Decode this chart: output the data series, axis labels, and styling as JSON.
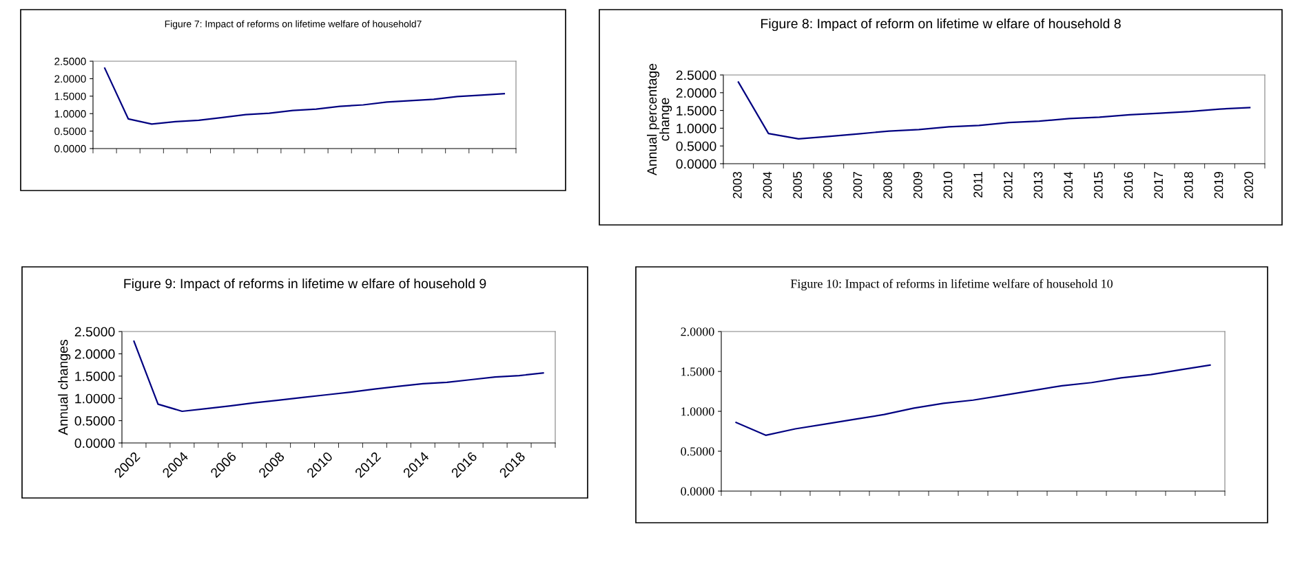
{
  "chart_data": [
    {
      "type": "line",
      "title": "Figure 7: Impact of reforms on lifetime welfare of household7",
      "categories": [
        null,
        null,
        null,
        null,
        null,
        null,
        null,
        null,
        null,
        null,
        null,
        null,
        null,
        null,
        null,
        null,
        null,
        null
      ],
      "series": [
        {
          "color": "#000080",
          "values": [
            2.3,
            0.85,
            0.7,
            0.77,
            0.81,
            0.89,
            0.97,
            1.01,
            1.09,
            1.13,
            1.21,
            1.25,
            1.33,
            1.37,
            1.41,
            1.49,
            1.53,
            1.57
          ]
        }
      ],
      "ylim": [
        0,
        2.5
      ],
      "yticks": [
        {
          "value": 0,
          "label": "0.0000"
        },
        {
          "value": 0.5,
          "label": "0.5000"
        },
        {
          "value": 1,
          "label": "1.0000"
        },
        {
          "value": 1.5,
          "label": "1.5000"
        },
        {
          "value": 2,
          "label": "2.0000"
        },
        {
          "value": 2.5,
          "label": "2.5000"
        }
      ],
      "grid": false,
      "legend": false
    },
    {
      "type": "line",
      "title": "Figure 8: Impact of reform on lifetime w elfare of household 8",
      "ylabel": "Annual percentage\nchange",
      "categories": [
        "2003",
        "2004",
        "2005",
        "2006",
        "2007",
        "2008",
        "2009",
        "2010",
        "2011",
        "2012",
        "2013",
        "2014",
        "2015",
        "2016",
        "2017",
        "2018",
        "2019",
        "2020"
      ],
      "series": [
        {
          "color": "#000080",
          "values": [
            2.3,
            0.85,
            0.7,
            0.77,
            0.84,
            0.92,
            0.96,
            1.04,
            1.08,
            1.16,
            1.2,
            1.27,
            1.31,
            1.38,
            1.42,
            1.47,
            1.54,
            1.58
          ]
        }
      ],
      "ylim": [
        0,
        2.5
      ],
      "yticks": [
        {
          "value": 0,
          "label": "0.0000"
        },
        {
          "value": 0.5,
          "label": "0.5000"
        },
        {
          "value": 1,
          "label": "1.0000"
        },
        {
          "value": 1.5,
          "label": "1.5000"
        },
        {
          "value": 2,
          "label": "2.0000"
        },
        {
          "value": 2.5,
          "label": "2.5000"
        }
      ],
      "grid": false,
      "legend": false
    },
    {
      "type": "line",
      "title": "Figure 9: Impact of reforms in lifetime w elfare of household 9",
      "ylabel": "Annual changes",
      "categories": [
        "2002",
        null,
        "2004",
        null,
        "2006",
        null,
        "2008",
        null,
        "2010",
        null,
        "2012",
        null,
        "2014",
        null,
        "2016",
        null,
        "2018",
        null
      ],
      "series": [
        {
          "color": "#000080",
          "values": [
            2.28,
            0.87,
            0.71,
            0.77,
            0.83,
            0.9,
            0.96,
            1.02,
            1.08,
            1.14,
            1.21,
            1.27,
            1.33,
            1.36,
            1.42,
            1.48,
            1.51,
            1.57
          ]
        }
      ],
      "ylim": [
        0,
        2.5
      ],
      "yticks": [
        {
          "value": 0,
          "label": "0.0000"
        },
        {
          "value": 0.5,
          "label": "0.5000"
        },
        {
          "value": 1,
          "label": "1.0000"
        },
        {
          "value": 1.5,
          "label": "1.5000"
        },
        {
          "value": 2,
          "label": "2.0000"
        },
        {
          "value": 2.5,
          "label": "2.5000"
        }
      ],
      "grid": false,
      "legend": false
    },
    {
      "type": "line",
      "title": "Figure 10: Impact of reforms in lifetime welfare of household 10",
      "categories": [
        null,
        null,
        null,
        null,
        null,
        null,
        null,
        null,
        null,
        null,
        null,
        null,
        null,
        null,
        null,
        null,
        null
      ],
      "series": [
        {
          "color": "#000080",
          "values": [
            0.86,
            0.7,
            0.78,
            0.84,
            0.9,
            0.96,
            1.04,
            1.1,
            1.14,
            1.2,
            1.26,
            1.32,
            1.36,
            1.42,
            1.46,
            1.52,
            1.58
          ]
        }
      ],
      "ylim": [
        0,
        2
      ],
      "yticks": [
        {
          "value": 0,
          "label": "0.0000"
        },
        {
          "value": 0.5,
          "label": "0.5000"
        },
        {
          "value": 1,
          "label": "1.0000"
        },
        {
          "value": 1.5,
          "label": "1.5000"
        },
        {
          "value": 2,
          "label": "2.0000"
        }
      ],
      "grid": false,
      "legend": false
    }
  ]
}
